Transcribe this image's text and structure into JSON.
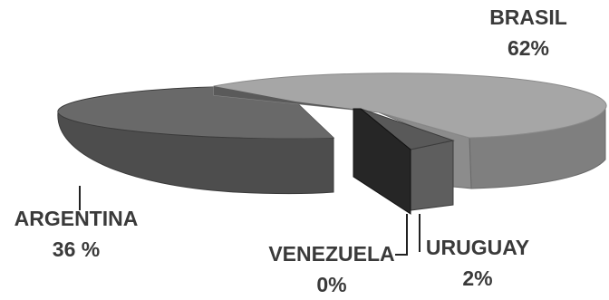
{
  "chart_data": {
    "type": "pie",
    "style": "3d-exploded",
    "slices": [
      {
        "label": "BRASIL",
        "value": 62,
        "display": "62%",
        "color": "#a6a6a6",
        "side_color": "#7f7f7f"
      },
      {
        "label": "ARGENTINA",
        "value": 36,
        "display": "36 %",
        "color": "#6b6b6b",
        "side_color": "#4d4d4d"
      },
      {
        "label": "URUGUAY",
        "value": 2,
        "display": "2%",
        "color": "#595959",
        "side_color": "#3c3c3c"
      },
      {
        "label": "VENEZUELA",
        "value": 0,
        "display": "0%",
        "color": "#262626",
        "side_color": "#1a1a1a"
      }
    ],
    "legend": "none",
    "data_labels": "outside"
  }
}
